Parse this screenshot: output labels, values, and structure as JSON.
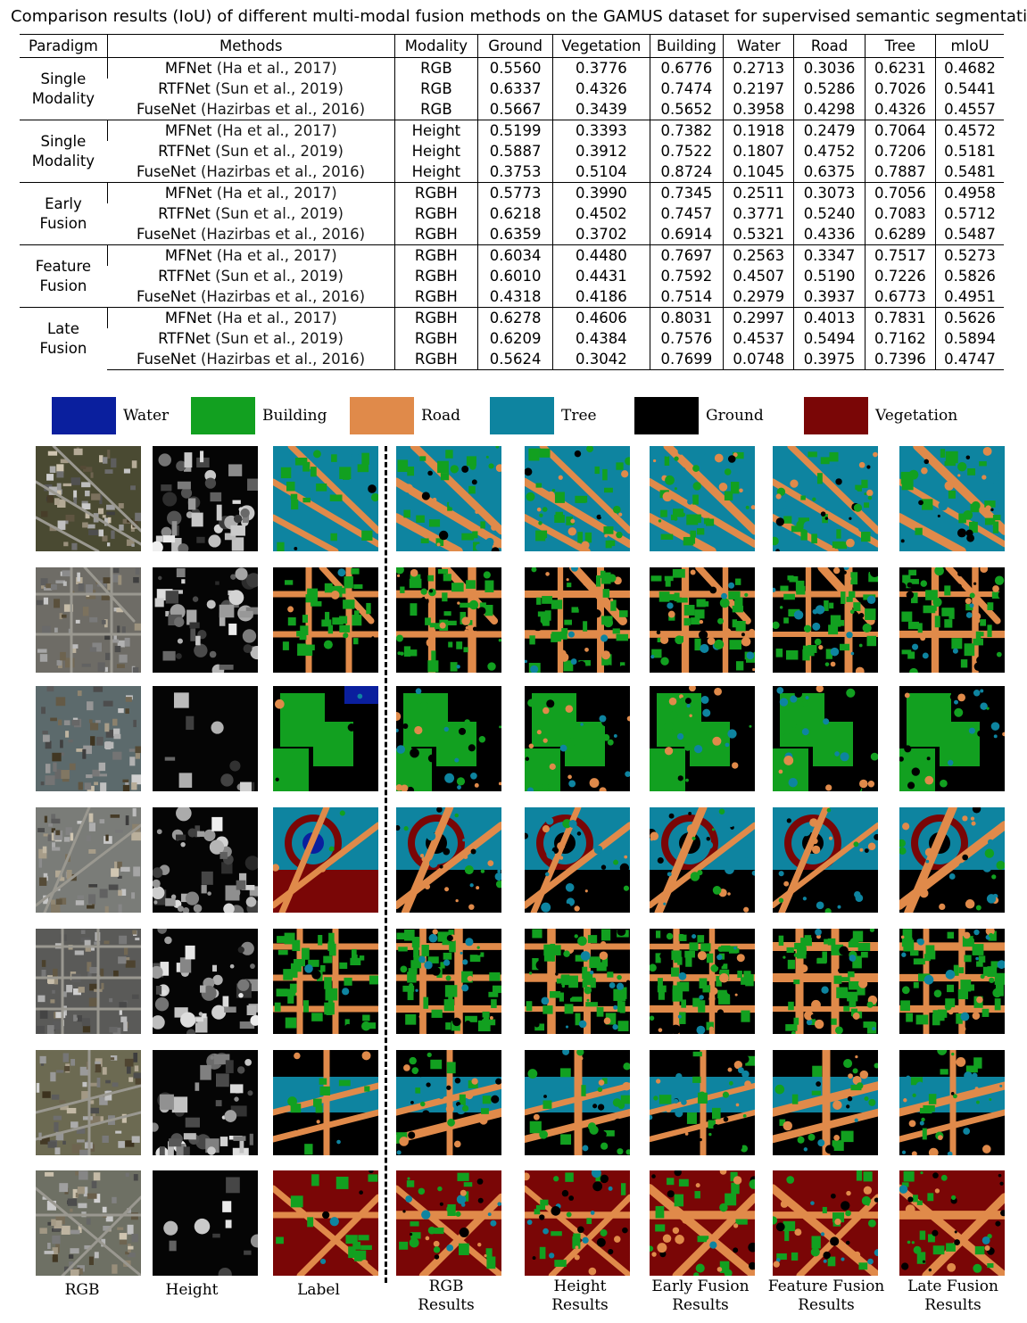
{
  "caption": "Comparison results (IoU) of different multi-modal fusion methods on the GAMUS dataset for supervised semantic segmentation",
  "table": {
    "headers": [
      "Paradigm",
      "Methods",
      "Modality",
      "Ground",
      "Vegetation",
      "Building",
      "Water",
      "Road",
      "Tree",
      "mIoU"
    ],
    "groups": [
      {
        "paradigm_line1": "Single",
        "paradigm_line2": "Modality",
        "rows": [
          {
            "method": "MFNet",
            "cite": "(Ha et al., 2017)",
            "modality": "RGB",
            "values": [
              "0.5560",
              "0.3776",
              "0.6776",
              "0.2713",
              "0.3036",
              "0.6231",
              "0.4682"
            ]
          },
          {
            "method": "RTFNet",
            "cite": "(Sun et al., 2019)",
            "modality": "RGB",
            "values": [
              "0.6337",
              "0.4326",
              "0.7474",
              "0.2197",
              "0.5286",
              "0.7026",
              "0.5441"
            ]
          },
          {
            "method": "FuseNet",
            "cite": "(Hazirbas et al., 2016)",
            "modality": "RGB",
            "values": [
              "0.5667",
              "0.3439",
              "0.5652",
              "0.3958",
              "0.4298",
              "0.4326",
              "0.4557"
            ]
          }
        ]
      },
      {
        "paradigm_line1": "Single",
        "paradigm_line2": "Modality",
        "rows": [
          {
            "method": "MFNet",
            "cite": "(Ha et al., 2017)",
            "modality": "Height",
            "values": [
              "0.5199",
              "0.3393",
              "0.7382",
              "0.1918",
              "0.2479",
              "0.7064",
              "0.4572"
            ]
          },
          {
            "method": "RTFNet",
            "cite": "(Sun et al., 2019)",
            "modality": "Height",
            "values": [
              "0.5887",
              "0.3912",
              "0.7522",
              "0.1807",
              "0.4752",
              "0.7206",
              "0.5181"
            ]
          },
          {
            "method": "FuseNet",
            "cite": "(Hazirbas et al., 2016)",
            "modality": "Height",
            "values": [
              "0.3753",
              "0.5104",
              "0.8724",
              "0.1045",
              "0.6375",
              "0.7887",
              "0.5481"
            ]
          }
        ]
      },
      {
        "paradigm_line1": "Early",
        "paradigm_line2": "Fusion",
        "rows": [
          {
            "method": "MFNet",
            "cite": "(Ha et al., 2017)",
            "modality": "RGBH",
            "values": [
              "0.5773",
              "0.3990",
              "0.7345",
              "0.2511",
              "0.3073",
              "0.7056",
              "0.4958"
            ]
          },
          {
            "method": "RTFNet",
            "cite": "(Sun et al., 2019)",
            "modality": "RGBH",
            "values": [
              "0.6218",
              "0.4502",
              "0.7457",
              "0.3771",
              "0.5240",
              "0.7083",
              "0.5712"
            ]
          },
          {
            "method": "FuseNet",
            "cite": "(Hazirbas et al., 2016)",
            "modality": "RGBH",
            "values": [
              "0.6359",
              "0.3702",
              "0.6914",
              "0.5321",
              "0.4336",
              "0.6289",
              "0.5487"
            ]
          }
        ]
      },
      {
        "paradigm_line1": "Feature",
        "paradigm_line2": "Fusion",
        "rows": [
          {
            "method": "MFNet",
            "cite": "(Ha et al., 2017)",
            "modality": "RGBH",
            "values": [
              "0.6034",
              "0.4480",
              "0.7697",
              "0.2563",
              "0.3347",
              "0.7517",
              "0.5273"
            ]
          },
          {
            "method": "RTFNet",
            "cite": "(Sun et al., 2019)",
            "modality": "RGBH",
            "values": [
              "0.6010",
              "0.4431",
              "0.7592",
              "0.4507",
              "0.5190",
              "0.7226",
              "0.5826"
            ]
          },
          {
            "method": "FuseNet",
            "cite": "(Hazirbas et al., 2016)",
            "modality": "RGBH",
            "values": [
              "0.4318",
              "0.4186",
              "0.7514",
              "0.2979",
              "0.3937",
              "0.6773",
              "0.4951"
            ]
          }
        ]
      },
      {
        "paradigm_line1": "Late",
        "paradigm_line2": "Fusion",
        "rows": [
          {
            "method": "MFNet",
            "cite": "(Ha et al., 2017)",
            "modality": "RGBH",
            "values": [
              "0.6278",
              "0.4606",
              "0.8031",
              "0.2997",
              "0.4013",
              "0.7831",
              "0.5626"
            ]
          },
          {
            "method": "RTFNet",
            "cite": "(Sun et al., 2019)",
            "modality": "RGBH",
            "values": [
              "0.6209",
              "0.4384",
              "0.7576",
              "0.4537",
              "0.5494",
              "0.7162",
              "0.5894"
            ]
          },
          {
            "method": "FuseNet",
            "cite": "(Hazirbas et al., 2016)",
            "modality": "RGBH",
            "values": [
              "0.5624",
              "0.3042",
              "0.7699",
              "0.0748",
              "0.3975",
              "0.7396",
              "0.4747"
            ]
          }
        ]
      }
    ]
  },
  "legend": [
    {
      "label": "Water",
      "color": "#0a1f9e"
    },
    {
      "label": "Building",
      "color": "#12a020"
    },
    {
      "label": "Road",
      "color": "#e08a4a"
    },
    {
      "label": "Tree",
      "color": "#0e84a0"
    },
    {
      "label": "Ground",
      "color": "#000000"
    },
    {
      "label": "Vegetation",
      "color": "#7a0606"
    }
  ],
  "column_labels": [
    [
      "RGB"
    ],
    [
      "Height"
    ],
    [
      "Label"
    ],
    [
      "RGB",
      "Results"
    ],
    [
      "Height",
      "Results"
    ],
    [
      "Early Fusion",
      "Results"
    ],
    [
      "Feature Fusion",
      "Results"
    ],
    [
      "Late Fusion",
      "Results"
    ]
  ]
}
